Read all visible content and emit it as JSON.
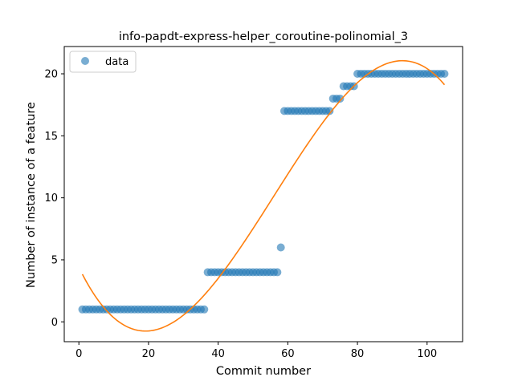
{
  "chart_data": {
    "type": "scatter",
    "title": "info-papdt-express-helper_coroutine-polinomial_3",
    "xlabel": "Commit number",
    "ylabel": "Number of instance of a feature",
    "xlim": [
      -4.2,
      110.2
    ],
    "ylim": [
      -1.6,
      22.2
    ],
    "xticks": [
      0,
      20,
      40,
      60,
      80,
      100
    ],
    "yticks": [
      0,
      5,
      10,
      15,
      20
    ],
    "legend": {
      "position": "top-left",
      "entries": [
        "data"
      ]
    },
    "grid": false,
    "colors": {
      "data": "#1f77b4",
      "fit": "#ff7f0e"
    },
    "series": [
      {
        "name": "data",
        "kind": "scatter",
        "segments": [
          {
            "x_from": 1,
            "x_to": 36,
            "y": 1
          },
          {
            "x_from": 37,
            "x_to": 57,
            "y": 4
          },
          {
            "x_from": 58,
            "x_to": 58,
            "y": 6
          },
          {
            "x_from": 59,
            "x_to": 72,
            "y": 17
          },
          {
            "x_from": 73,
            "x_to": 75,
            "y": 18
          },
          {
            "x_from": 76,
            "x_to": 79,
            "y": 19
          },
          {
            "x_from": 80,
            "x_to": 105,
            "y": 20
          }
        ]
      },
      {
        "kind": "line",
        "fit": "polynomial_degree_3",
        "points": [
          [
            1,
            3.8
          ],
          [
            19,
            -0.6
          ],
          [
            40,
            3.3
          ],
          [
            56,
            10.2
          ],
          [
            80,
            19.5
          ],
          [
            93,
            20.8
          ],
          [
            105,
            19.2
          ]
        ]
      }
    ]
  }
}
